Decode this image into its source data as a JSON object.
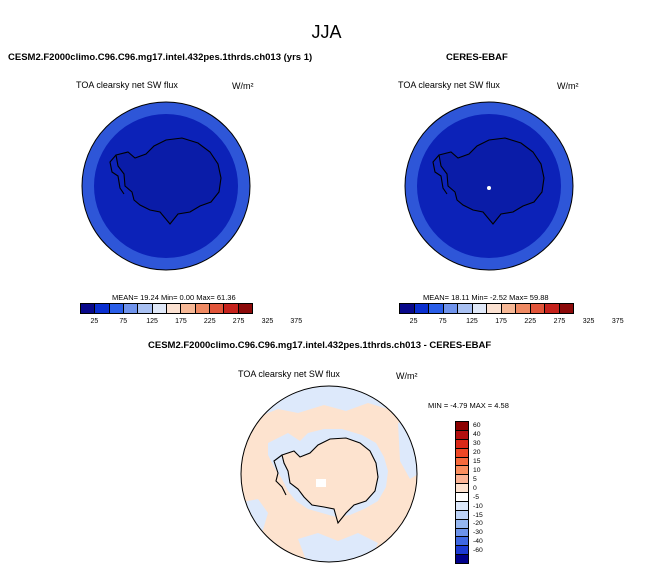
{
  "page_title": "JJA",
  "panels": [
    {
      "title": "CESM2.F2000climo.C96.C96.mg17.intel.432pes.1thrds.ch013 (yrs 1)",
      "variable": "TOA clearsky net SW flux",
      "units": "W/m²",
      "stats": "MEAN=  19.24  Min=   0.00  Max=  61.36"
    },
    {
      "title": "CERES-EBAF",
      "variable": "TOA clearsky net SW flux",
      "units": "W/m²",
      "stats": "MEAN=  18.11  Min=  -2.52  Max=  59.88"
    },
    {
      "title": "CESM2.F2000climo.C96.C96.mg17.intel.432pes.1thrds.ch013 - CERES-EBAF",
      "variable": "TOA clearsky net SW flux",
      "units": "W/m²",
      "stats": "MIN =  -4.79 MAX =   4.58"
    }
  ],
  "colorbar_abs": {
    "ticks": [
      "25",
      "75",
      "125",
      "175",
      "225",
      "275",
      "325",
      "375"
    ],
    "colors": [
      "#08088a",
      "#0a2fd0",
      "#2a5ee8",
      "#6f93ec",
      "#a8c0f2",
      "#dfe8f8",
      "#fbe1d1",
      "#f6b896",
      "#ef8a63",
      "#e1553a",
      "#c5221c",
      "#8c0a0a"
    ]
  },
  "colorbar_diff": {
    "ticks": [
      "60",
      "40",
      "30",
      "20",
      "15",
      "10",
      "5",
      "0",
      "-5",
      "-10",
      "-15",
      "-20",
      "-30",
      "-40",
      "-60"
    ],
    "colors": [
      "#8b0000",
      "#b30f0f",
      "#d92818",
      "#ee4725",
      "#f76a3c",
      "#fa8e5e",
      "#fbb394",
      "#fde2cf",
      "#ffffff",
      "#dde9fb",
      "#bcd2f6",
      "#96b7f0",
      "#6d93ea",
      "#3f68e2",
      "#1d3bd3",
      "#00008b"
    ]
  }
}
